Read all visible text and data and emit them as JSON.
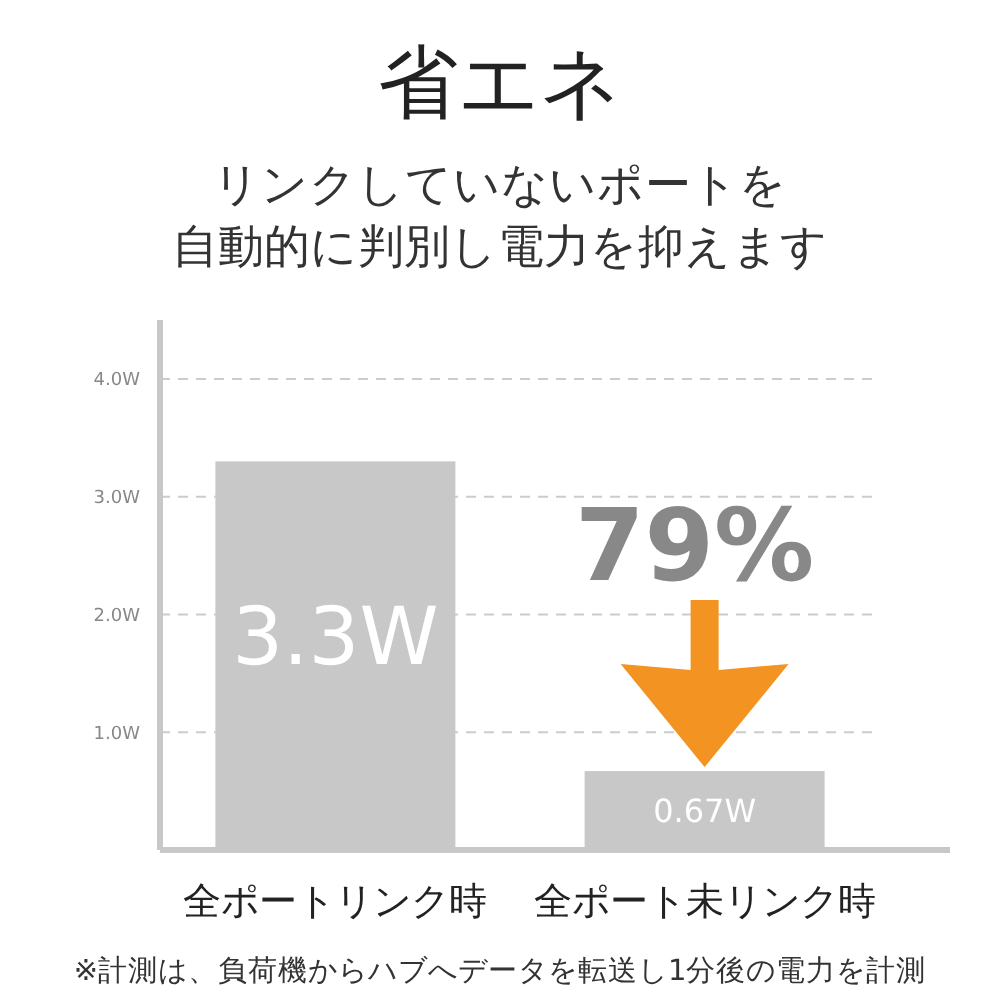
{
  "chart_data": {
    "type": "bar",
    "title": "省エネ",
    "subtitle": "リンクしていないポートを",
    "categories": [
      "全ポートリンク時",
      "全ポート未リンク時"
    ],
    "values": [
      3.3,
      0.67
    ],
    "value_labels": [
      "3.3W",
      "0.67W"
    ],
    "color": "#c8c8c8",
    "ylim": [
      0,
      4.5
    ],
    "yticks": [
      {
        "value": 1,
        "label": "1.0W"
      },
      {
        "value": 2,
        "label": "2.0W"
      },
      {
        "value": 3,
        "label": "3.0W"
      },
      {
        "value": 4,
        "label": "4.0W"
      }
    ],
    "grid": "y",
    "annotations": [
      "自動的に判別し電力を抑えます",
      "79%",
      "※計測は、負荷機からハブへデータを転送し1分後の電力を計測"
    ]
  }
}
